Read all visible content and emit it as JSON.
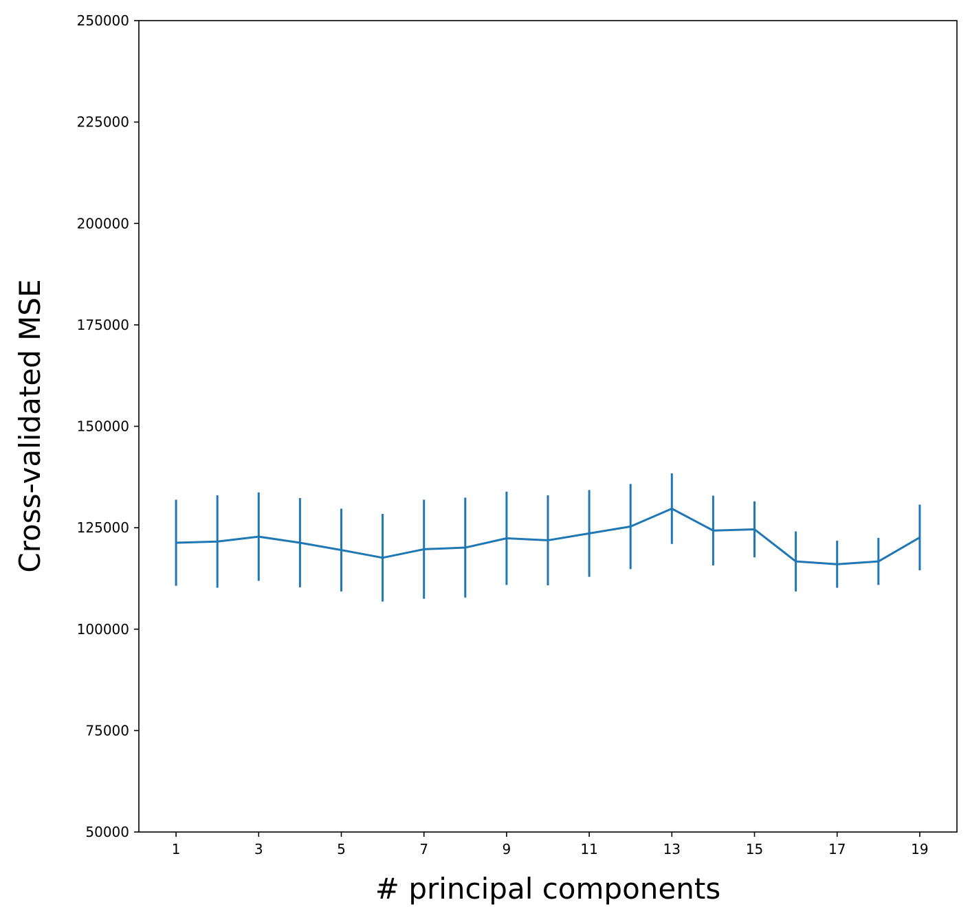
{
  "chart_data": {
    "type": "line",
    "title": "",
    "xlabel": "# principal components",
    "ylabel": "Cross-validated MSE",
    "xlim": [
      0.1,
      19.9
    ],
    "ylim": [
      50000,
      250000
    ],
    "x_ticks": [
      1,
      3,
      5,
      7,
      9,
      11,
      13,
      15,
      17,
      19
    ],
    "x_tick_labels": [
      "1",
      "3",
      "5",
      "7",
      "9",
      "11",
      "13",
      "15",
      "17",
      "19"
    ],
    "y_ticks": [
      50000,
      75000,
      100000,
      125000,
      150000,
      175000,
      200000,
      225000,
      250000
    ],
    "y_tick_labels": [
      "50000",
      "75000",
      "100000",
      "125000",
      "150000",
      "175000",
      "200000",
      "225000",
      "250000"
    ],
    "grid": false,
    "series": [
      {
        "color": "#1f77b4",
        "x": [
          1,
          2,
          3,
          4,
          5,
          6,
          7,
          8,
          9,
          10,
          11,
          12,
          13,
          14,
          15,
          16,
          17,
          18,
          19
        ],
        "values": [
          121300,
          121600,
          122800,
          121300,
          119500,
          117600,
          119700,
          120100,
          122400,
          121900,
          123600,
          125300,
          129700,
          124300,
          124600,
          116700,
          116000,
          116700,
          122600
        ],
        "error": [
          10600,
          11400,
          10900,
          11000,
          10200,
          10800,
          12200,
          12300,
          11500,
          11100,
          10700,
          10500,
          8700,
          8600,
          6900,
          7400,
          5800,
          5800,
          8100
        ]
      }
    ]
  }
}
